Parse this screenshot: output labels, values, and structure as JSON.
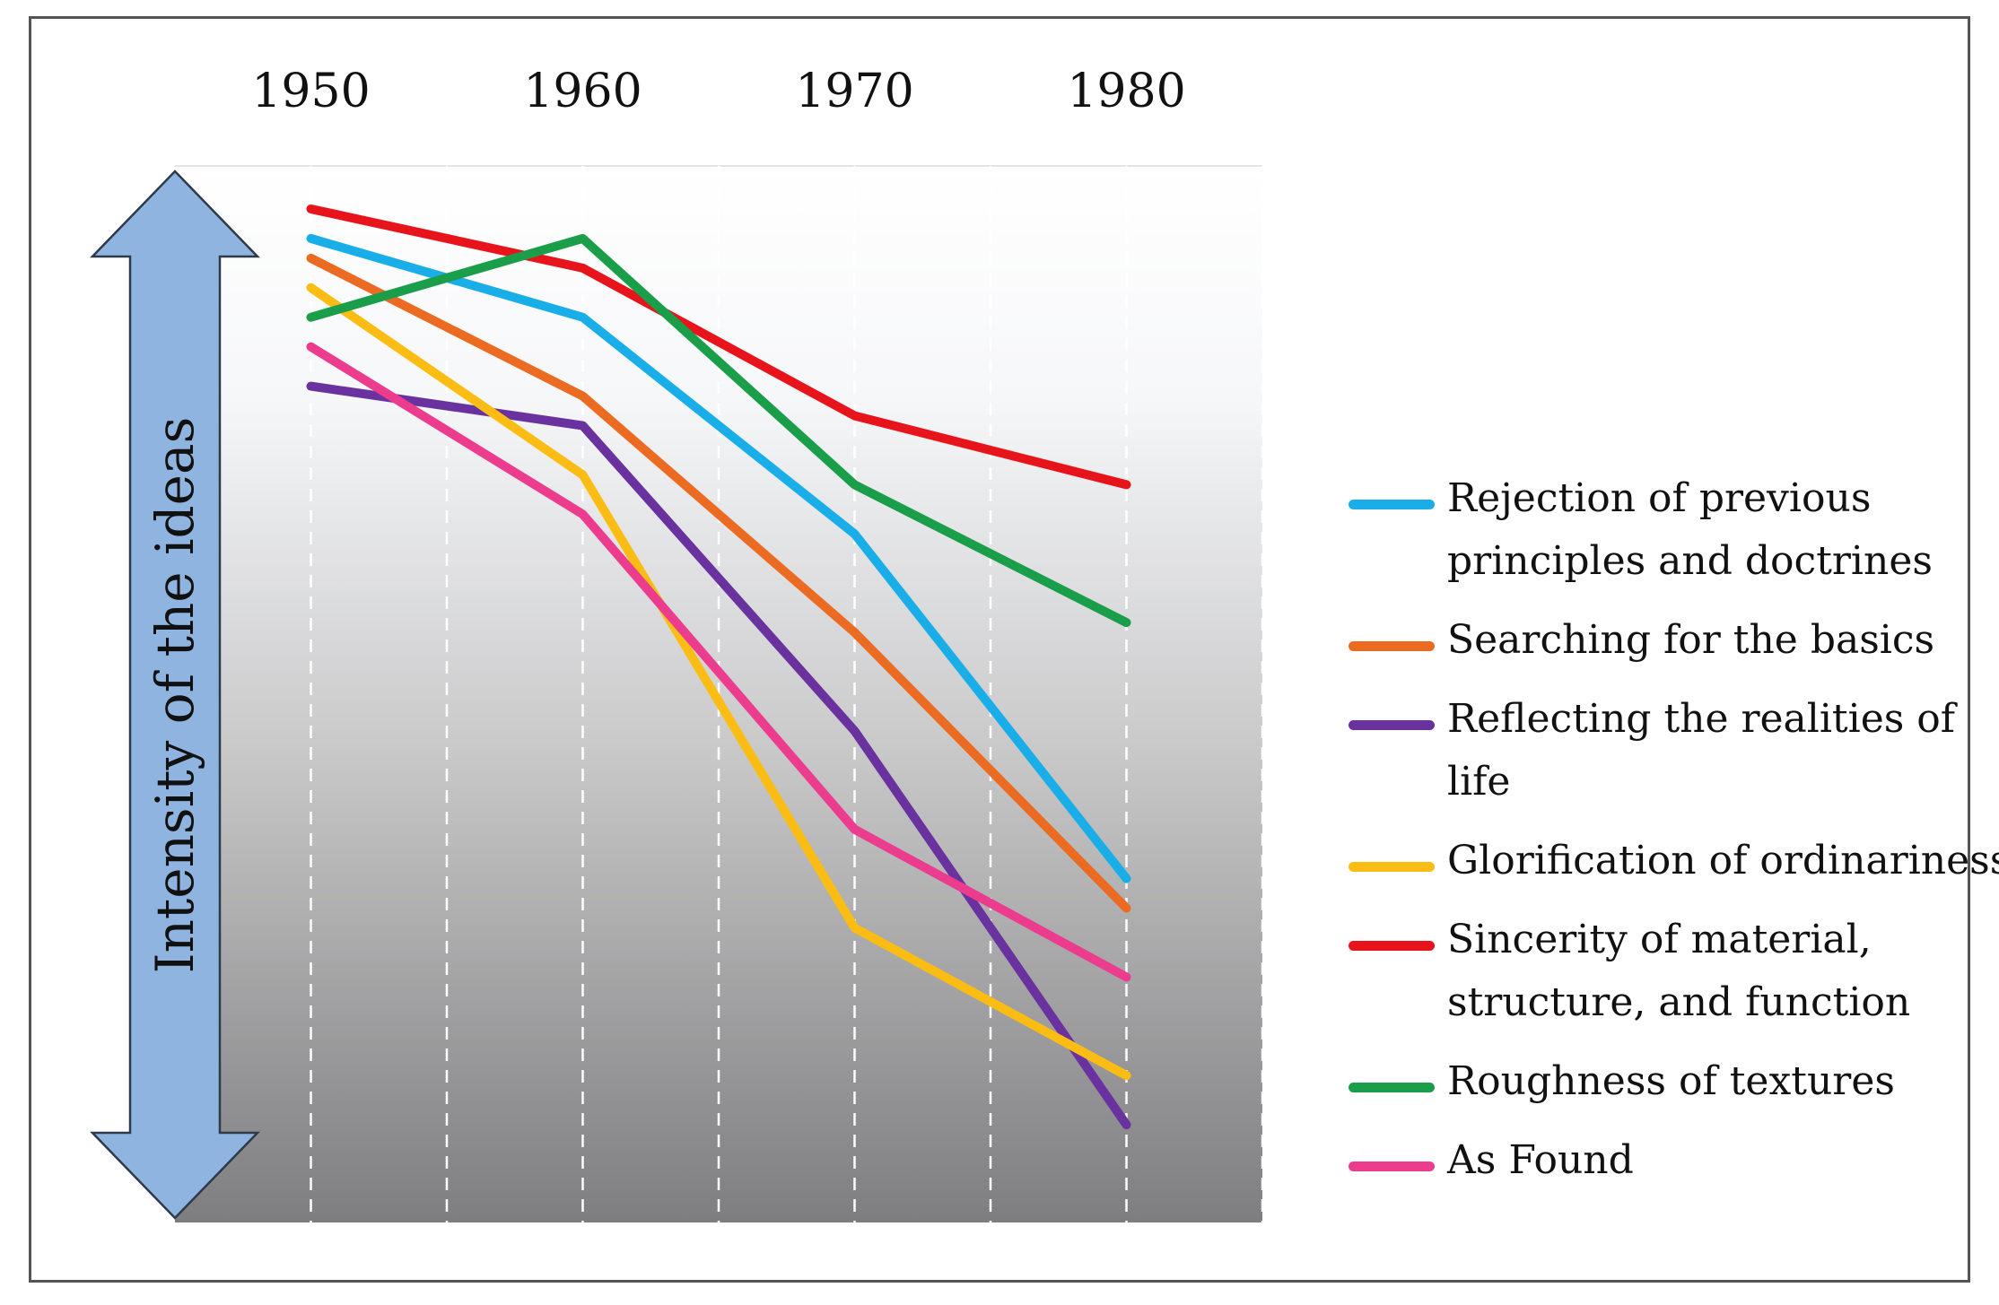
{
  "chart_data": {
    "type": "line",
    "title": "",
    "xlabel": "",
    "ylabel": "Intensity of the ideas",
    "x": [
      1950,
      1960,
      1970,
      1980
    ],
    "tick_labels": [
      "1950",
      "1960",
      "1970",
      "1980"
    ],
    "ylim": [
      0,
      100
    ],
    "grid": "vertical-dashed",
    "legend_position": "right",
    "series": [
      {
        "name": "Rejection of previous principles and doctrines",
        "color": "#1aaee8",
        "values": [
          95,
          87,
          65,
          30
        ]
      },
      {
        "name": "Searching for the basics",
        "color": "#ec6b23",
        "values": [
          93,
          79,
          55,
          27
        ]
      },
      {
        "name": "Reflecting the realities of life",
        "color": "#6a329f",
        "values": [
          80,
          76,
          45,
          5
        ]
      },
      {
        "name": "Glorification of ordinariness",
        "color": "#fbbd13",
        "values": [
          90,
          71,
          25,
          10
        ]
      },
      {
        "name": "Sincerity of material, structure, and function",
        "color": "#e8141b",
        "values": [
          98,
          92,
          77,
          70
        ]
      },
      {
        "name": "Roughness of textures",
        "color": "#1a9e4a",
        "values": [
          87,
          95,
          70,
          56
        ]
      },
      {
        "name": "As Found",
        "color": "#ec3c8e",
        "values": [
          84,
          67,
          35,
          20
        ]
      }
    ]
  }
}
